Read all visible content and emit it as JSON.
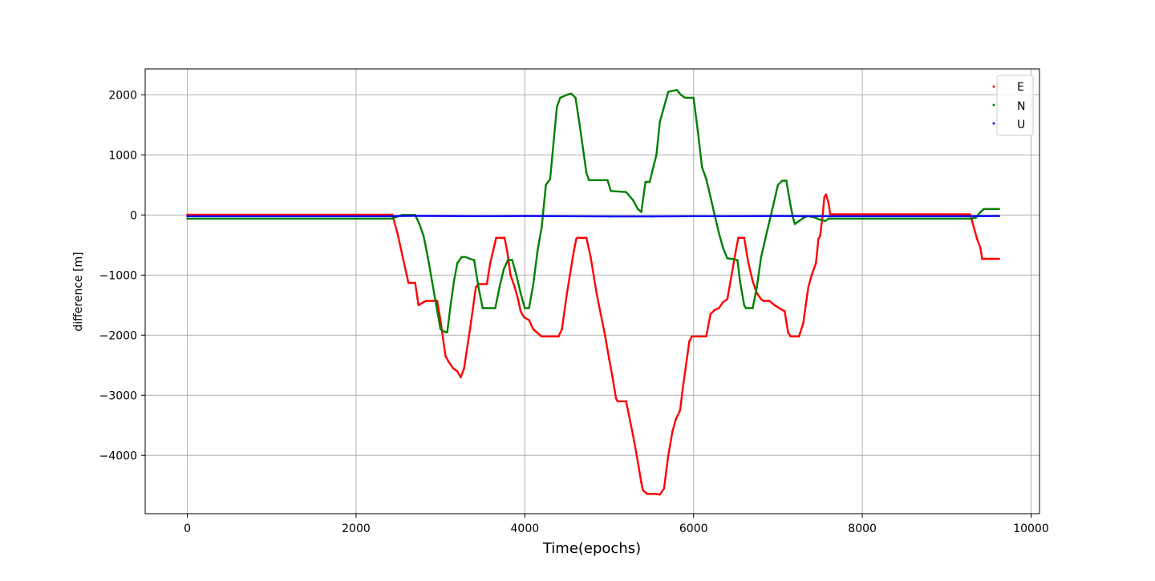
{
  "chart_data": {
    "type": "scatter",
    "title": "",
    "xlabel": "Time(epochs)",
    "ylabel": "difference [m]",
    "xlim": [
      -500,
      10100
    ],
    "ylim": [
      -4970,
      2430
    ],
    "xticks": [
      0,
      2000,
      4000,
      6000,
      8000,
      10000
    ],
    "yticks": [
      2000,
      1000,
      0,
      -1000,
      -2000,
      -3000,
      -4000,
      -5000
    ],
    "xtick_labels": [
      "0",
      "2000",
      "4000",
      "6000",
      "8000",
      "10000"
    ],
    "ytick_labels": [
      "2000",
      "1000",
      "0",
      "−1000",
      "−2000",
      "−3000",
      "−4000",
      "−5000"
    ],
    "grid": true,
    "legend_position": "top-right",
    "series": [
      {
        "name": "E",
        "color": "#ff0000",
        "points": [
          [
            0,
            5
          ],
          [
            2430,
            5
          ],
          [
            2490,
            -300
          ],
          [
            2560,
            -750
          ],
          [
            2600,
            -1000
          ],
          [
            2620,
            -1130
          ],
          [
            2700,
            -1130
          ],
          [
            2740,
            -1500
          ],
          [
            2800,
            -1450
          ],
          [
            2830,
            -1430
          ],
          [
            2960,
            -1430
          ],
          [
            3000,
            -1750
          ],
          [
            3030,
            -2050
          ],
          [
            3060,
            -2350
          ],
          [
            3100,
            -2450
          ],
          [
            3150,
            -2550
          ],
          [
            3200,
            -2600
          ],
          [
            3240,
            -2700
          ],
          [
            3280,
            -2550
          ],
          [
            3350,
            -1900
          ],
          [
            3420,
            -1200
          ],
          [
            3450,
            -1150
          ],
          [
            3550,
            -1150
          ],
          [
            3590,
            -800
          ],
          [
            3640,
            -500
          ],
          [
            3660,
            -380
          ],
          [
            3760,
            -380
          ],
          [
            3790,
            -600
          ],
          [
            3830,
            -1000
          ],
          [
            3880,
            -1200
          ],
          [
            3920,
            -1400
          ],
          [
            3950,
            -1600
          ],
          [
            3990,
            -1700
          ],
          [
            4050,
            -1750
          ],
          [
            4100,
            -1900
          ],
          [
            4180,
            -2000
          ],
          [
            4200,
            -2020
          ],
          [
            4400,
            -2020
          ],
          [
            4440,
            -1900
          ],
          [
            4500,
            -1300
          ],
          [
            4580,
            -600
          ],
          [
            4610,
            -400
          ],
          [
            4620,
            -380
          ],
          [
            4730,
            -380
          ],
          [
            4780,
            -700
          ],
          [
            4850,
            -1300
          ],
          [
            4900,
            -1650
          ],
          [
            4950,
            -2000
          ],
          [
            5000,
            -2400
          ],
          [
            5040,
            -2700
          ],
          [
            5080,
            -3050
          ],
          [
            5100,
            -3100
          ],
          [
            5200,
            -3100
          ],
          [
            5230,
            -3300
          ],
          [
            5280,
            -3650
          ],
          [
            5320,
            -3950
          ],
          [
            5350,
            -4200
          ],
          [
            5380,
            -4450
          ],
          [
            5400,
            -4580
          ],
          [
            5450,
            -4640
          ],
          [
            5530,
            -4640
          ],
          [
            5600,
            -4650
          ],
          [
            5650,
            -4550
          ],
          [
            5700,
            -4000
          ],
          [
            5750,
            -3600
          ],
          [
            5790,
            -3400
          ],
          [
            5840,
            -3250
          ],
          [
            5880,
            -2800
          ],
          [
            5920,
            -2400
          ],
          [
            5950,
            -2100
          ],
          [
            5980,
            -2020
          ],
          [
            6150,
            -2020
          ],
          [
            6200,
            -1650
          ],
          [
            6250,
            -1580
          ],
          [
            6300,
            -1550
          ],
          [
            6350,
            -1450
          ],
          [
            6400,
            -1400
          ],
          [
            6450,
            -1000
          ],
          [
            6500,
            -600
          ],
          [
            6530,
            -380
          ],
          [
            6600,
            -380
          ],
          [
            6650,
            -800
          ],
          [
            6700,
            -1100
          ],
          [
            6750,
            -1300
          ],
          [
            6800,
            -1400
          ],
          [
            6830,
            -1430
          ],
          [
            6900,
            -1430
          ],
          [
            6960,
            -1500
          ],
          [
            7050,
            -1580
          ],
          [
            7080,
            -1600
          ],
          [
            7120,
            -1950
          ],
          [
            7150,
            -2020
          ],
          [
            7250,
            -2020
          ],
          [
            7300,
            -1800
          ],
          [
            7330,
            -1500
          ],
          [
            7360,
            -1200
          ],
          [
            7400,
            -1000
          ],
          [
            7450,
            -800
          ],
          [
            7480,
            -400
          ],
          [
            7500,
            -350
          ],
          [
            7530,
            0
          ],
          [
            7550,
            300
          ],
          [
            7570,
            340
          ],
          [
            7600,
            200
          ],
          [
            7620,
            10
          ],
          [
            9280,
            10
          ],
          [
            9320,
            -200
          ],
          [
            9360,
            -400
          ],
          [
            9400,
            -550
          ],
          [
            9420,
            -730
          ],
          [
            9620,
            -730
          ]
        ]
      },
      {
        "name": "N",
        "color": "#008000",
        "points": [
          [
            0,
            -60
          ],
          [
            2430,
            -60
          ],
          [
            2500,
            -20
          ],
          [
            2550,
            0
          ],
          [
            2700,
            0
          ],
          [
            2750,
            -150
          ],
          [
            2800,
            -350
          ],
          [
            2850,
            -700
          ],
          [
            2900,
            -1100
          ],
          [
            2950,
            -1500
          ],
          [
            3000,
            -1900
          ],
          [
            3060,
            -1950
          ],
          [
            3080,
            -1950
          ],
          [
            3120,
            -1500
          ],
          [
            3160,
            -1100
          ],
          [
            3200,
            -800
          ],
          [
            3250,
            -700
          ],
          [
            3300,
            -700
          ],
          [
            3350,
            -730
          ],
          [
            3400,
            -750
          ],
          [
            3450,
            -1200
          ],
          [
            3500,
            -1550
          ],
          [
            3650,
            -1550
          ],
          [
            3700,
            -1200
          ],
          [
            3750,
            -900
          ],
          [
            3800,
            -750
          ],
          [
            3850,
            -750
          ],
          [
            3900,
            -1000
          ],
          [
            3950,
            -1300
          ],
          [
            4000,
            -1550
          ],
          [
            4050,
            -1550
          ],
          [
            4100,
            -1150
          ],
          [
            4150,
            -600
          ],
          [
            4200,
            -200
          ],
          [
            4250,
            500
          ],
          [
            4300,
            600
          ],
          [
            4340,
            1200
          ],
          [
            4380,
            1800
          ],
          [
            4420,
            1950
          ],
          [
            4500,
            2000
          ],
          [
            4550,
            2020
          ],
          [
            4600,
            1950
          ],
          [
            4650,
            1500
          ],
          [
            4700,
            1000
          ],
          [
            4730,
            700
          ],
          [
            4760,
            580
          ],
          [
            4980,
            580
          ],
          [
            5020,
            400
          ],
          [
            5200,
            380
          ],
          [
            5280,
            250
          ],
          [
            5340,
            100
          ],
          [
            5380,
            50
          ],
          [
            5430,
            550
          ],
          [
            5480,
            550
          ],
          [
            5520,
            780
          ],
          [
            5560,
            1000
          ],
          [
            5600,
            1550
          ],
          [
            5650,
            1800
          ],
          [
            5700,
            2050
          ],
          [
            5800,
            2080
          ],
          [
            5850,
            2000
          ],
          [
            5900,
            1950
          ],
          [
            6000,
            1950
          ],
          [
            6050,
            1400
          ],
          [
            6100,
            800
          ],
          [
            6150,
            600
          ],
          [
            6200,
            300
          ],
          [
            6250,
            0
          ],
          [
            6300,
            -300
          ],
          [
            6350,
            -550
          ],
          [
            6400,
            -720
          ],
          [
            6450,
            -730
          ],
          [
            6520,
            -750
          ],
          [
            6550,
            -1100
          ],
          [
            6600,
            -1500
          ],
          [
            6620,
            -1550
          ],
          [
            6700,
            -1550
          ],
          [
            6750,
            -1200
          ],
          [
            6800,
            -700
          ],
          [
            6850,
            -400
          ],
          [
            6900,
            -100
          ],
          [
            6950,
            200
          ],
          [
            7000,
            500
          ],
          [
            7050,
            570
          ],
          [
            7100,
            570
          ],
          [
            7150,
            150
          ],
          [
            7180,
            -50
          ],
          [
            7200,
            -150
          ],
          [
            7250,
            -100
          ],
          [
            7300,
            -50
          ],
          [
            7350,
            -20
          ],
          [
            7400,
            -30
          ],
          [
            7450,
            -50
          ],
          [
            7500,
            -80
          ],
          [
            7560,
            -100
          ],
          [
            7600,
            -60
          ],
          [
            7900,
            -60
          ],
          [
            9300,
            -60
          ],
          [
            9350,
            -40
          ],
          [
            9400,
            50
          ],
          [
            9440,
            100
          ],
          [
            9620,
            100
          ]
        ]
      },
      {
        "name": "U",
        "color": "#0000ff",
        "points": [
          [
            0,
            -20
          ],
          [
            2430,
            -20
          ],
          [
            2600,
            -15
          ],
          [
            3000,
            -18
          ],
          [
            3500,
            -20
          ],
          [
            4000,
            -18
          ],
          [
            4500,
            -20
          ],
          [
            5000,
            -25
          ],
          [
            5500,
            -25
          ],
          [
            6000,
            -20
          ],
          [
            6500,
            -20
          ],
          [
            7000,
            -18
          ],
          [
            7500,
            -20
          ],
          [
            8000,
            -20
          ],
          [
            8500,
            -20
          ],
          [
            9000,
            -20
          ],
          [
            9620,
            -18
          ]
        ]
      }
    ]
  }
}
